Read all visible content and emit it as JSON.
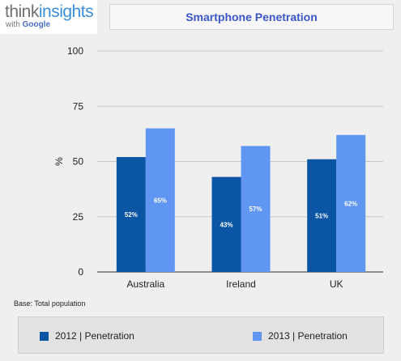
{
  "logo": {
    "think": "think",
    "insights": "insights",
    "with": "with",
    "google": "Google"
  },
  "chart_data": {
    "type": "bar",
    "title": "Smartphone Penetration",
    "ylabel": "%",
    "xlabel": "",
    "ylim": [
      0,
      100
    ],
    "yticks": [
      "0",
      "25",
      "50",
      "75",
      "100"
    ],
    "categories": [
      "Australia",
      "Ireland",
      "UK"
    ],
    "series": [
      {
        "name": "2012 | Penetration",
        "color": "#0b55a5",
        "values": [
          52,
          43,
          51
        ],
        "labels": [
          "52%",
          "43%",
          "51%"
        ]
      },
      {
        "name": "2013 | Penetration",
        "color": "#5f96f1",
        "values": [
          65,
          57,
          62
        ],
        "labels": [
          "65%",
          "57%",
          "62%"
        ]
      }
    ],
    "grid": true,
    "legend_position": "bottom"
  },
  "base_note": "Base: Total population"
}
